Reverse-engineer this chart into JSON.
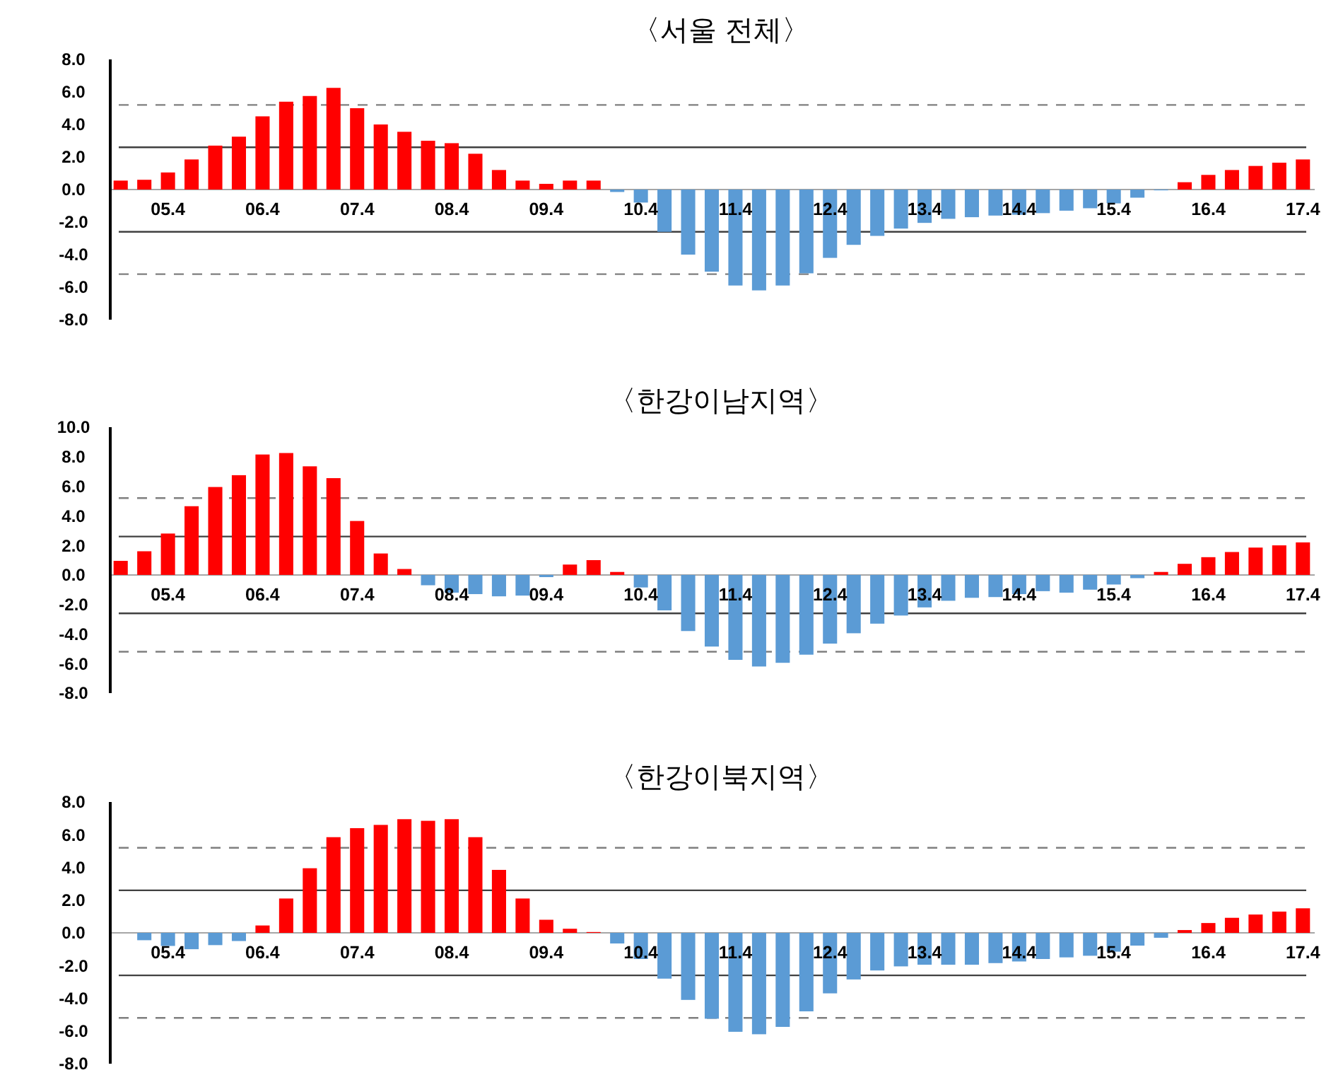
{
  "chart_data": [
    {
      "type": "bar",
      "title": "〈서울 전체〉",
      "categories": [
        null,
        null,
        "05.4",
        null,
        null,
        null,
        "06.4",
        null,
        null,
        null,
        "07.4",
        null,
        null,
        null,
        "08.4",
        null,
        null,
        null,
        "09.4",
        null,
        null,
        null,
        "10.4",
        null,
        null,
        null,
        "11.4",
        null,
        null,
        null,
        "12.4",
        null,
        null,
        null,
        "13.4",
        null,
        null,
        null,
        "14.4",
        null,
        null,
        null,
        "15.4",
        null,
        null,
        null,
        "16.4",
        null,
        null,
        null,
        "17.4"
      ],
      "values": [
        0.55,
        0.6,
        1.05,
        1.85,
        2.7,
        3.25,
        4.5,
        5.4,
        5.75,
        6.25,
        5.0,
        4.0,
        3.55,
        3.0,
        2.85,
        2.2,
        1.2,
        0.55,
        0.35,
        0.55,
        0.55,
        -0.15,
        -0.8,
        -2.6,
        -4.0,
        -5.05,
        -5.9,
        -6.2,
        -5.9,
        -5.15,
        -4.2,
        -3.4,
        -2.85,
        -2.4,
        -2.05,
        -1.8,
        -1.7,
        -1.6,
        -1.55,
        -1.45,
        -1.3,
        -1.15,
        -0.85,
        -0.5,
        -0.05,
        0.45,
        0.9,
        1.2,
        1.45,
        1.65,
        1.85
      ],
      "colors": [
        "#ff0000",
        "#ff0000",
        "#ff0000",
        "#ff0000",
        "#ff0000",
        "#ff0000",
        "#ff0000",
        "#ff0000",
        "#ff0000",
        "#ff0000",
        "#ff0000",
        "#ff0000",
        "#ff0000",
        "#ff0000",
        "#ff0000",
        "#ff0000",
        "#ff0000",
        "#ff0000",
        "#ff0000",
        "#ff0000",
        "#ff0000",
        "#5b9bd5",
        "#5b9bd5",
        "#5b9bd5",
        "#5b9bd5",
        "#5b9bd5",
        "#5b9bd5",
        "#5b9bd5",
        "#5b9bd5",
        "#5b9bd5",
        "#5b9bd5",
        "#5b9bd5",
        "#5b9bd5",
        "#5b9bd5",
        "#5b9bd5",
        "#5b9bd5",
        "#5b9bd5",
        "#5b9bd5",
        "#5b9bd5",
        "#5b9bd5",
        "#5b9bd5",
        "#5b9bd5",
        "#5b9bd5",
        "#5b9bd5",
        "#5b9bd5",
        "#ff0000",
        "#ff0000",
        "#ff0000",
        "#ff0000",
        "#ff0000",
        "#ff0000"
      ],
      "ylim": [
        -8,
        8
      ],
      "yticks": [
        {
          "value": -8,
          "label": "-8.0"
        },
        {
          "value": -6,
          "label": "-6.0"
        },
        {
          "value": -4,
          "label": "-4.0"
        },
        {
          "value": -2,
          "label": "-2.0"
        },
        {
          "value": 0,
          "label": "0.0"
        },
        {
          "value": 2,
          "label": "2.0"
        },
        {
          "value": 4,
          "label": "4.0"
        },
        {
          "value": 6,
          "label": "6.0"
        },
        {
          "value": 8,
          "label": "8.0"
        }
      ],
      "ref_lines": [
        {
          "axis": "y",
          "value": 5.2,
          "color": "#7f7f7f",
          "line_style": "dashed"
        },
        {
          "axis": "y",
          "value": 2.6,
          "color": "#404040",
          "line_style": "solid"
        },
        {
          "axis": "y",
          "value": -2.6,
          "color": "#404040",
          "line_style": "solid"
        },
        {
          "axis": "y",
          "value": -5.2,
          "color": "#7f7f7f",
          "line_style": "dashed"
        }
      ]
    },
    {
      "type": "bar",
      "title": "〈한강이남지역〉",
      "categories": [
        null,
        null,
        "05.4",
        null,
        null,
        null,
        "06.4",
        null,
        null,
        null,
        "07.4",
        null,
        null,
        null,
        "08.4",
        null,
        null,
        null,
        "09.4",
        null,
        null,
        null,
        "10.4",
        null,
        null,
        null,
        "11.4",
        null,
        null,
        null,
        "12.4",
        null,
        null,
        null,
        "13.4",
        null,
        null,
        null,
        "14.4",
        null,
        null,
        null,
        "15.4",
        null,
        null,
        null,
        "16.4",
        null,
        null,
        null,
        "17.4"
      ],
      "values": [
        0.95,
        1.6,
        2.8,
        4.65,
        5.95,
        6.75,
        8.15,
        8.25,
        7.35,
        6.55,
        3.65,
        1.45,
        0.4,
        -0.7,
        -1.2,
        -1.3,
        -1.45,
        -1.4,
        -0.15,
        0.7,
        1.0,
        0.2,
        -0.85,
        -2.4,
        -3.8,
        -4.85,
        -5.75,
        -6.2,
        -5.95,
        -5.4,
        -4.65,
        -3.95,
        -3.3,
        -2.75,
        -2.2,
        -1.75,
        -1.55,
        -1.5,
        -1.3,
        -1.1,
        -1.2,
        -1.0,
        -0.65,
        -0.22,
        0.2,
        0.75,
        1.2,
        1.55,
        1.85,
        2.0,
        2.2
      ],
      "colors": [
        "#ff0000",
        "#ff0000",
        "#ff0000",
        "#ff0000",
        "#ff0000",
        "#ff0000",
        "#ff0000",
        "#ff0000",
        "#ff0000",
        "#ff0000",
        "#ff0000",
        "#ff0000",
        "#ff0000",
        "#5b9bd5",
        "#5b9bd5",
        "#5b9bd5",
        "#5b9bd5",
        "#5b9bd5",
        "#5b9bd5",
        "#ff0000",
        "#ff0000",
        "#ff0000",
        "#5b9bd5",
        "#5b9bd5",
        "#5b9bd5",
        "#5b9bd5",
        "#5b9bd5",
        "#5b9bd5",
        "#5b9bd5",
        "#5b9bd5",
        "#5b9bd5",
        "#5b9bd5",
        "#5b9bd5",
        "#5b9bd5",
        "#5b9bd5",
        "#5b9bd5",
        "#5b9bd5",
        "#5b9bd5",
        "#5b9bd5",
        "#5b9bd5",
        "#5b9bd5",
        "#5b9bd5",
        "#5b9bd5",
        "#5b9bd5",
        "#ff0000",
        "#ff0000",
        "#ff0000",
        "#ff0000",
        "#ff0000",
        "#ff0000",
        "#ff0000"
      ],
      "ylim": [
        -8,
        10
      ],
      "yticks": [
        {
          "value": -8,
          "label": "-8.0"
        },
        {
          "value": -6,
          "label": "-6.0"
        },
        {
          "value": -4,
          "label": "-4.0"
        },
        {
          "value": -2,
          "label": "-2.0"
        },
        {
          "value": 0,
          "label": "0.0"
        },
        {
          "value": 2,
          "label": "2.0"
        },
        {
          "value": 4,
          "label": "4.0"
        },
        {
          "value": 6,
          "label": "6.0"
        },
        {
          "value": 8,
          "label": "8.0"
        },
        {
          "value": 10,
          "label": "10.0"
        }
      ],
      "ref_lines": [
        {
          "axis": "y",
          "value": 5.2,
          "color": "#7f7f7f",
          "line_style": "dashed"
        },
        {
          "axis": "y",
          "value": 2.6,
          "color": "#404040",
          "line_style": "solid"
        },
        {
          "axis": "y",
          "value": -2.6,
          "color": "#404040",
          "line_style": "solid"
        },
        {
          "axis": "y",
          "value": -5.2,
          "color": "#7f7f7f",
          "line_style": "dashed"
        }
      ]
    },
    {
      "type": "bar",
      "title": "〈한강이북지역〉",
      "categories": [
        null,
        null,
        "05.4",
        null,
        null,
        null,
        "06.4",
        null,
        null,
        null,
        "07.4",
        null,
        null,
        null,
        "08.4",
        null,
        null,
        null,
        "09.4",
        null,
        null,
        null,
        "10.4",
        null,
        null,
        null,
        "11.4",
        null,
        null,
        null,
        "12.4",
        null,
        null,
        null,
        "13.4",
        null,
        null,
        null,
        "14.4",
        null,
        null,
        null,
        "15.4",
        null,
        null,
        null,
        "16.4",
        null,
        null,
        null,
        "17.4"
      ],
      "values": [
        0,
        -0.45,
        -0.8,
        -1.0,
        -0.75,
        -0.5,
        0.45,
        2.1,
        3.95,
        5.85,
        6.4,
        6.6,
        6.95,
        6.85,
        6.95,
        5.85,
        3.85,
        2.1,
        0.8,
        0.25,
        0.05,
        -0.65,
        -1.6,
        -2.8,
        -4.1,
        -5.25,
        -6.05,
        -6.2,
        -5.75,
        -4.8,
        -3.7,
        -2.85,
        -2.3,
        -2.05,
        -1.95,
        -1.95,
        -1.95,
        -1.85,
        -1.75,
        -1.6,
        -1.5,
        -1.4,
        -1.15,
        -0.78,
        -0.3,
        0.17,
        0.6,
        0.92,
        1.12,
        1.3,
        1.5
      ],
      "colors": [
        "#5b9bd5",
        "#5b9bd5",
        "#5b9bd5",
        "#5b9bd5",
        "#5b9bd5",
        "#5b9bd5",
        "#ff0000",
        "#ff0000",
        "#ff0000",
        "#ff0000",
        "#ff0000",
        "#ff0000",
        "#ff0000",
        "#ff0000",
        "#ff0000",
        "#ff0000",
        "#ff0000",
        "#ff0000",
        "#ff0000",
        "#ff0000",
        "#ff0000",
        "#5b9bd5",
        "#5b9bd5",
        "#5b9bd5",
        "#5b9bd5",
        "#5b9bd5",
        "#5b9bd5",
        "#5b9bd5",
        "#5b9bd5",
        "#5b9bd5",
        "#5b9bd5",
        "#5b9bd5",
        "#5b9bd5",
        "#5b9bd5",
        "#5b9bd5",
        "#5b9bd5",
        "#5b9bd5",
        "#5b9bd5",
        "#5b9bd5",
        "#5b9bd5",
        "#5b9bd5",
        "#5b9bd5",
        "#5b9bd5",
        "#5b9bd5",
        "#5b9bd5",
        "#ff0000",
        "#ff0000",
        "#ff0000",
        "#ff0000",
        "#ff0000",
        "#ff0000"
      ],
      "ylim": [
        -8,
        8
      ],
      "yticks": [
        {
          "value": -8,
          "label": "-8.0"
        },
        {
          "value": -6,
          "label": "-6.0"
        },
        {
          "value": -4,
          "label": "-4.0"
        },
        {
          "value": -2,
          "label": "-2.0"
        },
        {
          "value": 0,
          "label": "0.0"
        },
        {
          "value": 2,
          "label": "2.0"
        },
        {
          "value": 4,
          "label": "4.0"
        },
        {
          "value": 6,
          "label": "6.0"
        },
        {
          "value": 8,
          "label": "8.0"
        }
      ],
      "ref_lines": [
        {
          "axis": "y",
          "value": 5.2,
          "color": "#7f7f7f",
          "line_style": "dashed"
        },
        {
          "axis": "y",
          "value": 2.6,
          "color": "#404040",
          "line_style": "solid"
        },
        {
          "axis": "y",
          "value": -2.6,
          "color": "#404040",
          "line_style": "solid"
        },
        {
          "axis": "y",
          "value": -5.2,
          "color": "#7f7f7f",
          "line_style": "dashed"
        }
      ]
    }
  ]
}
